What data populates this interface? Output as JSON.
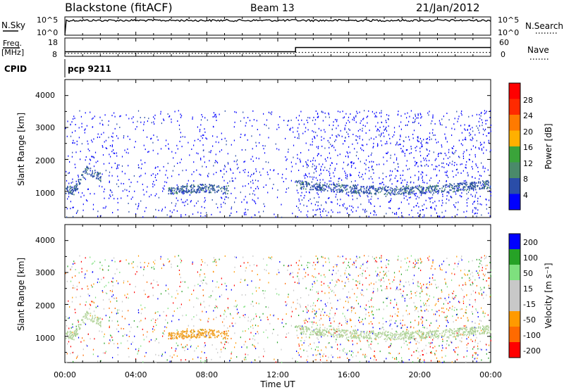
{
  "header": {
    "station": "Blackstone (fitACF)",
    "beam": "Beam 13",
    "date": "21/Jan/2012"
  },
  "left_labels": {
    "nsky": "N.Sky",
    "freq_line1": "Freq.",
    "freq_line2": "[MHz]",
    "cpid": "CPID"
  },
  "right_labels": {
    "nsearch": "N.Search",
    "nave": "Nave"
  },
  "colors": {
    "power_scale": [
      "#0000ff",
      "#2a4da8",
      "#4a8a6a",
      "#3aa43a",
      "#ffb000",
      "#ff7a00",
      "#ff2a00",
      "#ff0000"
    ],
    "velocity_scale": [
      "#0000ff",
      "#26a226",
      "#7ee07e",
      "#c8c8c8",
      "#c8c8c8",
      "#ff9a00",
      "#ff6a00",
      "#ff0000"
    ],
    "noise_line": "#000000"
  },
  "chart_data": [
    {
      "type": "line",
      "name": "noise",
      "yscale": "log",
      "yticks_left": [
        "10^5",
        "10^0"
      ],
      "yticks_right": [
        "10^5",
        "10^0"
      ],
      "series": [
        {
          "name": "N.Sky",
          "values_note": ""
        }
      ]
    },
    {
      "type": "line",
      "name": "frequency_nave",
      "yticks_left": [
        "18",
        "8"
      ],
      "yticks_right": [
        "60",
        "0"
      ],
      "series": [
        {
          "name": "Freq.",
          "x": [
            "00:00",
            "13:00",
            "13:00",
            "24:00"
          ],
          "y": [
            10.5,
            10.5,
            12.8,
            12.8
          ]
        },
        {
          "name": "Nave",
          "x": [
            "00:00",
            "13:00",
            "13:00",
            "24:00"
          ],
          "y": [
            12,
            12,
            15,
            15
          ]
        }
      ]
    },
    {
      "type": "heatmap",
      "name": "power",
      "cpid_label": "pcp 9211",
      "ylabel": "Slant Range [km]",
      "yticks": [
        "4000",
        "3000",
        "2000",
        "1000"
      ],
      "ylim": [
        180,
        4500
      ],
      "colorbar_label": "Power [dB]",
      "colorbar_ticks": [
        "28",
        "24",
        "20",
        "16",
        "12",
        "8",
        "4"
      ]
    },
    {
      "type": "heatmap",
      "name": "velocity",
      "ylabel": "Slant Range [km]",
      "yticks": [
        "4000",
        "3000",
        "2000",
        "1000"
      ],
      "ylim": [
        180,
        4500
      ],
      "colorbar_label": "Velocity [m s⁻¹]",
      "colorbar_ticks": [
        "200",
        "100",
        "50",
        "15",
        "-15",
        "-50",
        "-100",
        "-200"
      ]
    }
  ],
  "x_axis": {
    "label": "Time UT",
    "ticks": [
      "00:00",
      "04:00",
      "08:00",
      "12:00",
      "16:00",
      "20:00",
      "00:00"
    ]
  }
}
